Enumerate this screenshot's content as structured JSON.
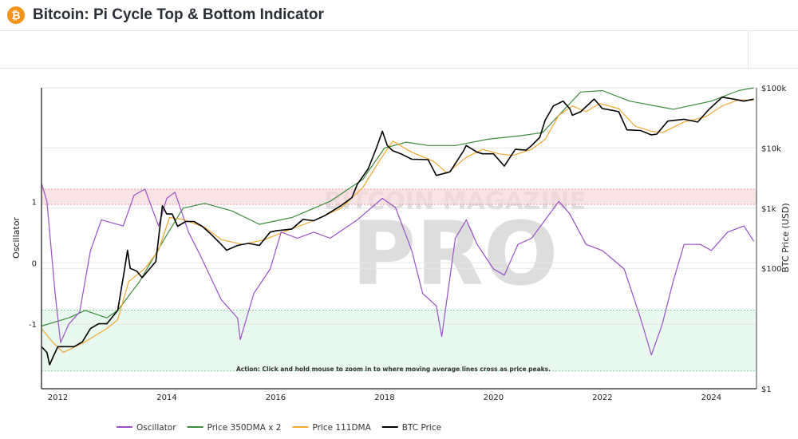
{
  "header": {
    "title": "Bitcoin: Pi Cycle Top & Bottom Indicator",
    "logo_icon": "bitcoin-icon",
    "logo_glyph": "₿"
  },
  "watermark": {
    "line1": "BITCOIN MAGAZINE",
    "line2": "PRO"
  },
  "annotation": "Action: Click and hold mouse to zoom in to where moving average lines cross as price peaks.",
  "chart_data": {
    "type": "line",
    "title": "Bitcoin: Pi Cycle Top & Bottom Indicator",
    "xlabel": "",
    "y_left_label": "Oscillator",
    "y_right_label": "BTC Price (USD)",
    "x_ticks": [
      "2012",
      "2014",
      "2016",
      "2018",
      "2020",
      "2022",
      "2024"
    ],
    "xlim": [
      2011.7,
      2024.83
    ],
    "y_left_ticks": [
      "1",
      "0",
      "-1"
    ],
    "y_right_ticks": [
      "$1",
      "$100",
      "$1k",
      "$10k",
      "$100k"
    ],
    "y_right_scale": "log",
    "y_right_range": [
      1,
      100000
    ],
    "y_left_range": [
      -2.05,
      2.85
    ],
    "bands": [
      {
        "name": "top zone",
        "from": 0.95,
        "to": 1.2,
        "color": "#f8d7da"
      },
      {
        "name": "bottom zone",
        "from": -1.76,
        "to": -0.77,
        "color": "#dff7ea"
      }
    ],
    "legend_position": "bottom",
    "series": [
      {
        "name": "Oscillator",
        "axis": "left",
        "color": "#9b4fc9",
        "x": [
          2011.7,
          2011.8,
          2011.95,
          2012.05,
          2012.2,
          2012.4,
          2012.6,
          2012.8,
          2013.0,
          2013.2,
          2013.4,
          2013.6,
          2013.85,
          2014.0,
          2014.15,
          2014.4,
          2014.6,
          2015.0,
          2015.3,
          2015.35,
          2015.6,
          2015.9,
          2016.1,
          2016.4,
          2016.7,
          2017.0,
          2017.5,
          2017.96,
          2018.2,
          2018.5,
          2018.7,
          2018.95,
          2019.05,
          2019.3,
          2019.5,
          2019.7,
          2020.0,
          2020.2,
          2020.45,
          2020.7,
          2020.95,
          2021.2,
          2021.4,
          2021.7,
          2022.0,
          2022.4,
          2022.7,
          2022.9,
          2023.1,
          2023.3,
          2023.5,
          2023.8,
          2024.0,
          2024.3,
          2024.6,
          2024.78
        ],
        "y": [
          1.3,
          1.0,
          -0.5,
          -1.3,
          -1.0,
          -0.8,
          0.2,
          0.7,
          0.65,
          0.6,
          1.1,
          1.2,
          0.6,
          1.05,
          1.15,
          0.5,
          0.15,
          -0.6,
          -0.9,
          -1.25,
          -0.5,
          -0.1,
          0.5,
          0.4,
          0.5,
          0.4,
          0.7,
          1.05,
          0.9,
          0.2,
          -0.5,
          -0.7,
          -1.2,
          0.4,
          0.7,
          0.3,
          -0.1,
          -0.2,
          0.3,
          0.4,
          0.7,
          1.0,
          0.8,
          0.3,
          0.2,
          -0.1,
          -0.9,
          -1.5,
          -1.0,
          -0.3,
          0.3,
          0.3,
          0.2,
          0.5,
          0.6,
          0.35
        ]
      },
      {
        "name": "Price 350DMA x 2",
        "axis": "right",
        "color": "#3c8c3c",
        "x": [
          2011.7,
          2012.2,
          2012.5,
          2012.9,
          2013.1,
          2013.5,
          2013.95,
          2014.3,
          2014.7,
          2015.2,
          2015.7,
          2016.3,
          2017.0,
          2017.6,
          2018.0,
          2018.4,
          2018.8,
          2019.3,
          2019.9,
          2020.5,
          2020.9,
          2021.2,
          2021.6,
          2022.0,
          2022.5,
          2023.3,
          2024.0,
          2024.5,
          2024.78
        ],
        "y": [
          11,
          15,
          20,
          15,
          20,
          60,
          300,
          1000,
          1200,
          900,
          540,
          700,
          1300,
          3000,
          10000,
          12500,
          11000,
          11000,
          14000,
          16000,
          18000,
          35000,
          85000,
          90000,
          60000,
          44000,
          60000,
          90000,
          100000
        ]
      },
      {
        "name": "Price 111DMA",
        "axis": "right",
        "color": "#f0a830",
        "x": [
          2011.7,
          2011.9,
          2012.1,
          2012.5,
          2012.9,
          2013.1,
          2013.3,
          2013.6,
          2013.85,
          2014.05,
          2014.3,
          2014.7,
          2015.0,
          2015.4,
          2015.8,
          2016.2,
          2016.7,
          2017.2,
          2017.6,
          2017.9,
          2018.15,
          2018.5,
          2018.9,
          2019.15,
          2019.5,
          2019.8,
          2020.1,
          2020.35,
          2020.7,
          2020.95,
          2021.2,
          2021.45,
          2021.7,
          2021.95,
          2022.3,
          2022.6,
          2022.9,
          2023.1,
          2023.5,
          2023.9,
          2024.2,
          2024.5,
          2024.78
        ],
        "y": [
          10,
          6,
          4,
          6,
          10,
          14,
          60,
          100,
          200,
          700,
          650,
          480,
          300,
          250,
          300,
          420,
          620,
          1000,
          2200,
          6000,
          13000,
          8500,
          6000,
          3800,
          7000,
          9500,
          8000,
          7500,
          9500,
          14000,
          35000,
          50000,
          40000,
          55000,
          45000,
          23000,
          19000,
          18000,
          27000,
          33000,
          50000,
          63000,
          62000
        ]
      },
      {
        "name": "BTC Price",
        "axis": "right",
        "color": "#000000",
        "x": [
          2011.7,
          2011.8,
          2011.85,
          2011.92,
          2012.0,
          2012.15,
          2012.3,
          2012.45,
          2012.6,
          2012.75,
          2012.9,
          2013.1,
          2013.22,
          2013.28,
          2013.33,
          2013.45,
          2013.55,
          2013.8,
          2013.92,
          2014.0,
          2014.1,
          2014.2,
          2014.35,
          2014.5,
          2014.65,
          2014.8,
          2015.0,
          2015.1,
          2015.3,
          2015.5,
          2015.7,
          2015.9,
          2016.0,
          2016.3,
          2016.5,
          2016.7,
          2016.9,
          2017.2,
          2017.4,
          2017.5,
          2017.7,
          2017.85,
          2017.96,
          2018.05,
          2018.15,
          2018.3,
          2018.5,
          2018.8,
          2018.95,
          2019.2,
          2019.45,
          2019.5,
          2019.7,
          2019.8,
          2020.0,
          2020.2,
          2020.4,
          2020.6,
          2020.7,
          2020.85,
          2020.95,
          2021.1,
          2021.28,
          2021.4,
          2021.45,
          2021.6,
          2021.85,
          2022.0,
          2022.2,
          2022.3,
          2022.45,
          2022.7,
          2022.9,
          2023.0,
          2023.2,
          2023.5,
          2023.75,
          2023.95,
          2024.2,
          2024.4,
          2024.6,
          2024.78
        ],
        "y": [
          5,
          4,
          2.5,
          3.5,
          5,
          5,
          5,
          6,
          10,
          12,
          12,
          20,
          90,
          200,
          100,
          90,
          70,
          130,
          1100,
          800,
          800,
          500,
          600,
          600,
          500,
          380,
          250,
          200,
          240,
          260,
          240,
          400,
          420,
          450,
          650,
          620,
          750,
          1100,
          1500,
          2500,
          4500,
          10000,
          19000,
          11000,
          9000,
          8000,
          6500,
          6400,
          3500,
          4000,
          9000,
          11000,
          8500,
          8000,
          8000,
          5000,
          9500,
          9200,
          11000,
          15000,
          29000,
          50000,
          60000,
          45000,
          35000,
          40000,
          65000,
          45000,
          42000,
          40000,
          20000,
          19500,
          16500,
          17000,
          28000,
          30000,
          27000,
          43000,
          70000,
          65000,
          60000,
          65000
        ]
      }
    ]
  },
  "legend": [
    {
      "label": "Oscillator",
      "color": "#9b4fc9"
    },
    {
      "label": "Price 350DMA x 2",
      "color": "#3c8c3c"
    },
    {
      "label": "Price 111DMA",
      "color": "#f0a830"
    },
    {
      "label": "BTC Price",
      "color": "#000000"
    }
  ]
}
